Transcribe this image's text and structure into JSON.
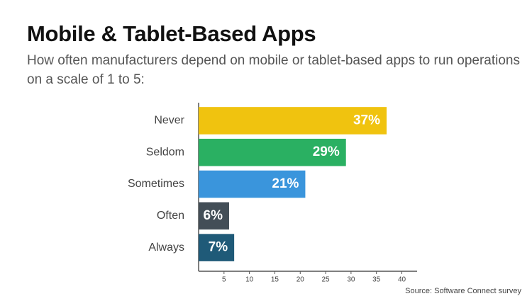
{
  "chart_data": {
    "type": "bar",
    "orientation": "horizontal",
    "title": "Mobile & Tablet-Based Apps",
    "subtitle": "How often manufacturers depend on mobile or tablet-based apps to run operations on a scale of 1 to 5:",
    "categories": [
      "Never",
      "Seldom",
      "Sometimes",
      "Often",
      "Always"
    ],
    "values": [
      37,
      29,
      21,
      6,
      7
    ],
    "value_labels": [
      "37%",
      "29%",
      "21%",
      "6%",
      "7%"
    ],
    "colors": [
      "#f0c30f",
      "#2ab062",
      "#3a95dc",
      "#434e57",
      "#1f5a78"
    ],
    "xlim": [
      0,
      43
    ],
    "xticks": [
      5,
      10,
      15,
      20,
      25,
      30,
      35,
      40
    ],
    "source": "Source: Software Connect survey"
  }
}
